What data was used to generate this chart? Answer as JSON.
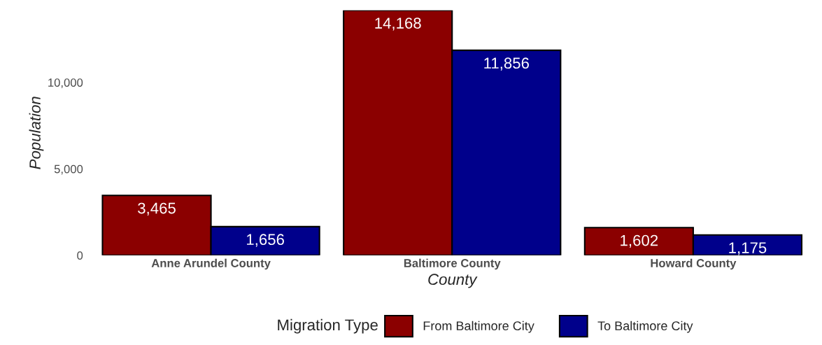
{
  "chart_data": {
    "type": "bar",
    "xlabel": "County",
    "ylabel": "Population",
    "legend_title": "Migration Type",
    "categories": [
      "Anne Arundel County",
      "Baltimore County",
      "Howard County"
    ],
    "series": [
      {
        "name": "From Baltimore City",
        "color": "#8b0000",
        "values": [
          3465,
          14168,
          1602
        ],
        "value_labels": [
          "3,465",
          "14,168",
          "1,602"
        ]
      },
      {
        "name": "To Baltimore City",
        "color": "#00008b",
        "values": [
          1656,
          11856,
          1175
        ],
        "value_labels": [
          "1,656",
          "11,856",
          "1,175"
        ]
      }
    ],
    "ylim": [
      0,
      14168
    ],
    "yticks": [
      0,
      {
        "value": 5000,
        "label": "5,000"
      },
      {
        "value": 10000,
        "label": "10,000"
      }
    ],
    "grid": false,
    "legend": "bottom"
  }
}
